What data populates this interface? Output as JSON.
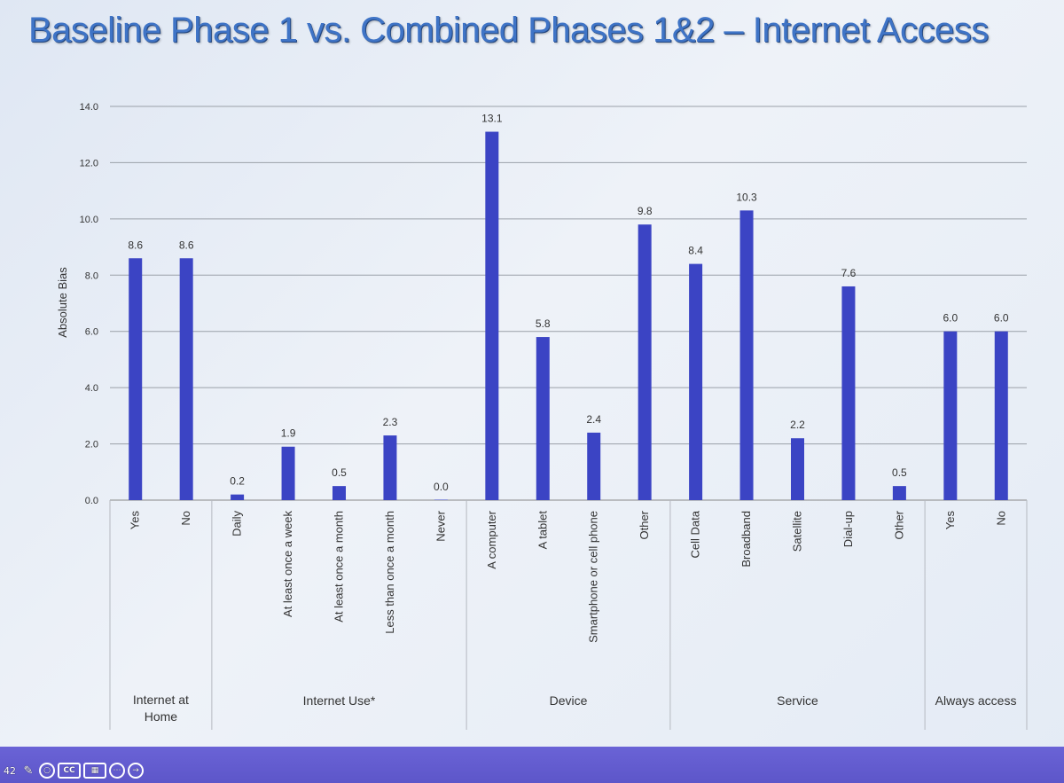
{
  "title": "Baseline Phase 1 vs. Combined Phases 1&2 – Internet Access",
  "colors": {
    "bar": "#3b44c4",
    "grid": "#9aa0a8",
    "title": "#3f74c6",
    "bottom_bar": "#5d56c9"
  },
  "toolbar": {
    "slide_number": "42",
    "icons": [
      "pen-icon",
      "magnifier-icon",
      "closed-captions-icon",
      "slide-sorter-icon",
      "more-options-icon",
      "next-arrow-icon"
    ],
    "captions_label": "CC"
  },
  "chart_data": {
    "type": "bar",
    "ylabel": "Absolute Bias",
    "ylim": [
      0,
      14
    ],
    "yticks": [
      "0.0",
      "2.0",
      "4.0",
      "6.0",
      "8.0",
      "10.0",
      "12.0",
      "14.0"
    ],
    "grid": true,
    "categories": [
      "Yes",
      "No",
      "Daily",
      "At least once a week",
      "At least once a month",
      "Less than once a month",
      "Never",
      "A computer",
      "A tablet",
      "Smartphone or cell phone",
      "Other",
      "Cell Data",
      "Broadband",
      "Satellite",
      "Dial-up",
      "Other",
      "Yes",
      "No"
    ],
    "values": [
      8.6,
      8.6,
      0.2,
      1.9,
      0.5,
      2.3,
      0.0,
      13.1,
      5.8,
      2.4,
      9.8,
      8.4,
      10.3,
      2.2,
      7.6,
      0.5,
      6.0,
      6.0
    ],
    "value_labels": [
      "8.6",
      "8.6",
      "0.2",
      "1.9",
      "0.5",
      "2.3",
      "0.0",
      "13.1",
      "5.8",
      "2.4",
      "9.8",
      "8.4",
      "10.3",
      "2.2",
      "7.6",
      "0.5",
      "6.0",
      "6.0"
    ],
    "groups": [
      {
        "label": "Internet at\nHome",
        "count": 2
      },
      {
        "label": "Internet Use*",
        "count": 5
      },
      {
        "label": "Device",
        "count": 4
      },
      {
        "label": "Service",
        "count": 5
      },
      {
        "label": "Always access",
        "count": 2
      }
    ]
  }
}
